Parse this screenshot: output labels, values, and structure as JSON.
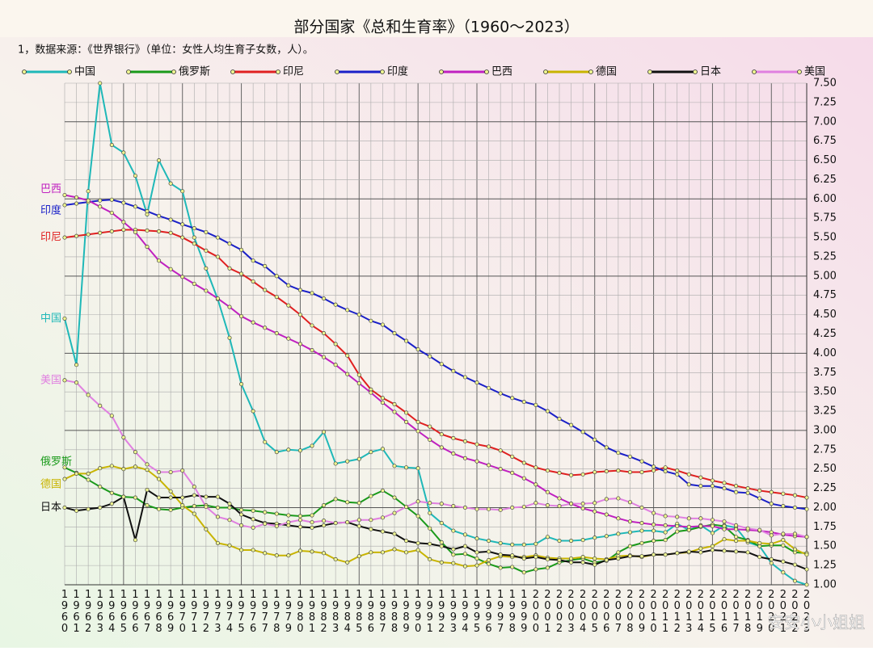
{
  "chart_data": {
    "type": "line",
    "title": "部分国家《总和生育率》（1960～2023）",
    "subtitle": "1，数据来源：《世界银行》（单位：女性人均生育子女数，人）。",
    "watermark": "安安小小姐姐",
    "categories": [
      "1960",
      "1961",
      "1962",
      "1963",
      "1964",
      "1965",
      "1966",
      "1967",
      "1968",
      "1969",
      "1970",
      "1971",
      "1972",
      "1973",
      "1974",
      "1975",
      "1976",
      "1977",
      "1978",
      "1979",
      "1980",
      "1981",
      "1982",
      "1983",
      "1984",
      "1985",
      "1986",
      "1987",
      "1988",
      "1989",
      "1990",
      "1991",
      "1992",
      "1993",
      "1994",
      "1995",
      "1996",
      "1997",
      "1998",
      "1999",
      "2000",
      "2001",
      "2002",
      "2003",
      "2004",
      "2005",
      "2006",
      "2007",
      "2008",
      "2009",
      "2010",
      "2011",
      "2012",
      "2013",
      "2014",
      "2015",
      "2016",
      "2017",
      "2018",
      "2019",
      "2020",
      "2021",
      "2022",
      "2023"
    ],
    "series": [
      {
        "name": "中国",
        "color": "#1fb8b8",
        "values": [
          4.45,
          3.85,
          6.1,
          7.5,
          6.7,
          6.6,
          6.3,
          5.8,
          6.5,
          6.2,
          6.1,
          5.5,
          5.1,
          4.7,
          4.2,
          3.6,
          3.25,
          2.85,
          2.72,
          2.75,
          2.74,
          2.8,
          2.98,
          2.57,
          2.6,
          2.63,
          2.72,
          2.76,
          2.54,
          2.52,
          2.51,
          1.93,
          1.8,
          1.7,
          1.65,
          1.6,
          1.57,
          1.54,
          1.52,
          1.52,
          1.53,
          1.62,
          1.57,
          1.57,
          1.58,
          1.61,
          1.63,
          1.66,
          1.68,
          1.7,
          1.7,
          1.68,
          1.79,
          1.71,
          1.77,
          1.67,
          1.77,
          1.74,
          1.55,
          1.5,
          1.28,
          1.16,
          1.05,
          1.0
        ]
      },
      {
        "name": "俄罗斯",
        "color": "#1a9a1a",
        "values": [
          2.52,
          2.45,
          2.36,
          2.27,
          2.19,
          2.14,
          2.13,
          2.03,
          1.98,
          1.97,
          2.0,
          2.02,
          2.03,
          2.0,
          2.0,
          1.97,
          1.96,
          1.94,
          1.92,
          1.9,
          1.89,
          1.9,
          2.03,
          2.11,
          2.07,
          2.06,
          2.15,
          2.22,
          2.13,
          2.01,
          1.89,
          1.73,
          1.55,
          1.39,
          1.4,
          1.34,
          1.27,
          1.22,
          1.23,
          1.16,
          1.2,
          1.22,
          1.29,
          1.32,
          1.34,
          1.29,
          1.31,
          1.42,
          1.5,
          1.54,
          1.57,
          1.58,
          1.69,
          1.71,
          1.75,
          1.78,
          1.76,
          1.62,
          1.58,
          1.5,
          1.51,
          1.51,
          1.42,
          1.41
        ]
      },
      {
        "name": "印尼",
        "color": "#e02020",
        "values": [
          5.5,
          5.52,
          5.54,
          5.56,
          5.58,
          5.6,
          5.6,
          5.59,
          5.58,
          5.56,
          5.5,
          5.42,
          5.33,
          5.25,
          5.1,
          5.03,
          4.93,
          4.82,
          4.73,
          4.62,
          4.5,
          4.36,
          4.26,
          4.12,
          3.97,
          3.72,
          3.53,
          3.42,
          3.34,
          3.23,
          3.11,
          3.05,
          2.95,
          2.9,
          2.86,
          2.82,
          2.79,
          2.74,
          2.66,
          2.58,
          2.52,
          2.48,
          2.45,
          2.42,
          2.43,
          2.46,
          2.47,
          2.48,
          2.46,
          2.46,
          2.48,
          2.52,
          2.48,
          2.43,
          2.39,
          2.35,
          2.32,
          2.28,
          2.25,
          2.22,
          2.2,
          2.18,
          2.16,
          2.13
        ]
      },
      {
        "name": "印度",
        "color": "#1a20c8",
        "values": [
          5.92,
          5.94,
          5.96,
          5.98,
          5.99,
          5.95,
          5.9,
          5.84,
          5.78,
          5.73,
          5.67,
          5.62,
          5.57,
          5.5,
          5.42,
          5.34,
          5.2,
          5.13,
          5.0,
          4.88,
          4.82,
          4.78,
          4.71,
          4.63,
          4.56,
          4.5,
          4.42,
          4.37,
          4.26,
          4.16,
          4.05,
          3.96,
          3.86,
          3.77,
          3.69,
          3.62,
          3.55,
          3.48,
          3.42,
          3.37,
          3.33,
          3.25,
          3.15,
          3.07,
          2.98,
          2.88,
          2.78,
          2.71,
          2.66,
          2.6,
          2.53,
          2.47,
          2.43,
          2.3,
          2.28,
          2.28,
          2.25,
          2.2,
          2.19,
          2.12,
          2.05,
          2.02,
          2.0,
          1.98
        ]
      },
      {
        "name": "巴西",
        "color": "#c020c0",
        "values": [
          6.05,
          6.02,
          5.98,
          5.9,
          5.82,
          5.7,
          5.57,
          5.38,
          5.2,
          5.09,
          4.99,
          4.9,
          4.81,
          4.71,
          4.6,
          4.48,
          4.4,
          4.33,
          4.26,
          4.19,
          4.12,
          4.04,
          3.95,
          3.85,
          3.73,
          3.61,
          3.49,
          3.36,
          3.24,
          3.11,
          2.99,
          2.88,
          2.78,
          2.7,
          2.64,
          2.6,
          2.55,
          2.5,
          2.45,
          2.38,
          2.3,
          2.2,
          2.12,
          2.05,
          1.99,
          1.95,
          1.91,
          1.86,
          1.82,
          1.8,
          1.78,
          1.77,
          1.76,
          1.75,
          1.76,
          1.76,
          1.72,
          1.72,
          1.71,
          1.7,
          1.68,
          1.65,
          1.63,
          1.62
        ]
      },
      {
        "name": "德国",
        "color": "#c8b400",
        "values": [
          2.37,
          2.44,
          2.44,
          2.51,
          2.54,
          2.5,
          2.53,
          2.49,
          2.37,
          2.21,
          2.03,
          1.92,
          1.72,
          1.54,
          1.51,
          1.45,
          1.45,
          1.41,
          1.38,
          1.38,
          1.44,
          1.43,
          1.41,
          1.33,
          1.29,
          1.37,
          1.42,
          1.42,
          1.46,
          1.42,
          1.45,
          1.33,
          1.29,
          1.28,
          1.24,
          1.25,
          1.32,
          1.37,
          1.36,
          1.36,
          1.38,
          1.35,
          1.34,
          1.34,
          1.36,
          1.34,
          1.33,
          1.37,
          1.38,
          1.36,
          1.39,
          1.39,
          1.41,
          1.42,
          1.47,
          1.5,
          1.59,
          1.57,
          1.57,
          1.54,
          1.53,
          1.58,
          1.46,
          1.39
        ]
      },
      {
        "name": "日本",
        "color": "#101010",
        "values": [
          2.0,
          1.96,
          1.98,
          2.0,
          2.05,
          2.14,
          1.58,
          2.23,
          2.13,
          2.13,
          2.13,
          2.16,
          2.14,
          2.14,
          2.05,
          1.91,
          1.85,
          1.8,
          1.79,
          1.77,
          1.75,
          1.74,
          1.77,
          1.8,
          1.81,
          1.76,
          1.72,
          1.69,
          1.66,
          1.57,
          1.54,
          1.53,
          1.5,
          1.46,
          1.5,
          1.42,
          1.43,
          1.39,
          1.38,
          1.34,
          1.36,
          1.33,
          1.32,
          1.29,
          1.29,
          1.26,
          1.32,
          1.34,
          1.37,
          1.37,
          1.39,
          1.39,
          1.41,
          1.43,
          1.42,
          1.45,
          1.44,
          1.43,
          1.42,
          1.36,
          1.33,
          1.3,
          1.26,
          1.2
        ]
      },
      {
        "name": "美国",
        "color": "#e080e0",
        "values": [
          3.65,
          3.62,
          3.46,
          3.32,
          3.19,
          2.91,
          2.72,
          2.56,
          2.46,
          2.46,
          2.48,
          2.27,
          2.01,
          1.88,
          1.84,
          1.77,
          1.74,
          1.79,
          1.76,
          1.81,
          1.84,
          1.81,
          1.83,
          1.8,
          1.81,
          1.84,
          1.84,
          1.87,
          1.93,
          2.01,
          2.08,
          2.06,
          2.05,
          2.02,
          2.0,
          1.98,
          1.98,
          1.97,
          2.0,
          2.01,
          2.06,
          2.03,
          2.02,
          2.05,
          2.05,
          2.06,
          2.11,
          2.12,
          2.07,
          2.0,
          1.93,
          1.89,
          1.88,
          1.86,
          1.86,
          1.84,
          1.82,
          1.77,
          1.73,
          1.71,
          1.64,
          1.66,
          1.66,
          1.62
        ]
      }
    ],
    "ylim": [
      1.0,
      7.5
    ],
    "yticks": [
      {
        "value": 1.0,
        "label": "1.00"
      },
      {
        "value": 1.25,
        "label": "1.25"
      },
      {
        "value": 1.5,
        "label": "1.50"
      },
      {
        "value": 1.75,
        "label": "1.75"
      },
      {
        "value": 2.0,
        "label": "2.00"
      },
      {
        "value": 2.25,
        "label": "2.25"
      },
      {
        "value": 2.5,
        "label": "2.50"
      },
      {
        "value": 2.75,
        "label": "2.75"
      },
      {
        "value": 3.0,
        "label": "3.00"
      },
      {
        "value": 3.25,
        "label": "3.25"
      },
      {
        "value": 3.5,
        "label": "3.50"
      },
      {
        "value": 3.75,
        "label": "3.75"
      },
      {
        "value": 4.0,
        "label": "4.00"
      },
      {
        "value": 4.25,
        "label": "4.25"
      },
      {
        "value": 4.5,
        "label": "4.50"
      },
      {
        "value": 4.75,
        "label": "4.75"
      },
      {
        "value": 5.0,
        "label": "5.00"
      },
      {
        "value": 5.25,
        "label": "5.25"
      },
      {
        "value": 5.5,
        "label": "5.50"
      },
      {
        "value": 5.75,
        "label": "5.75"
      },
      {
        "value": 6.0,
        "label": "6.00"
      },
      {
        "value": 6.25,
        "label": "6.25"
      },
      {
        "value": 6.5,
        "label": "6.50"
      },
      {
        "value": 6.75,
        "label": "6.75"
      },
      {
        "value": 7.0,
        "label": "7.00"
      },
      {
        "value": 7.25,
        "label": "7.25"
      },
      {
        "value": 7.5,
        "label": "7.50"
      }
    ],
    "grid": true
  }
}
